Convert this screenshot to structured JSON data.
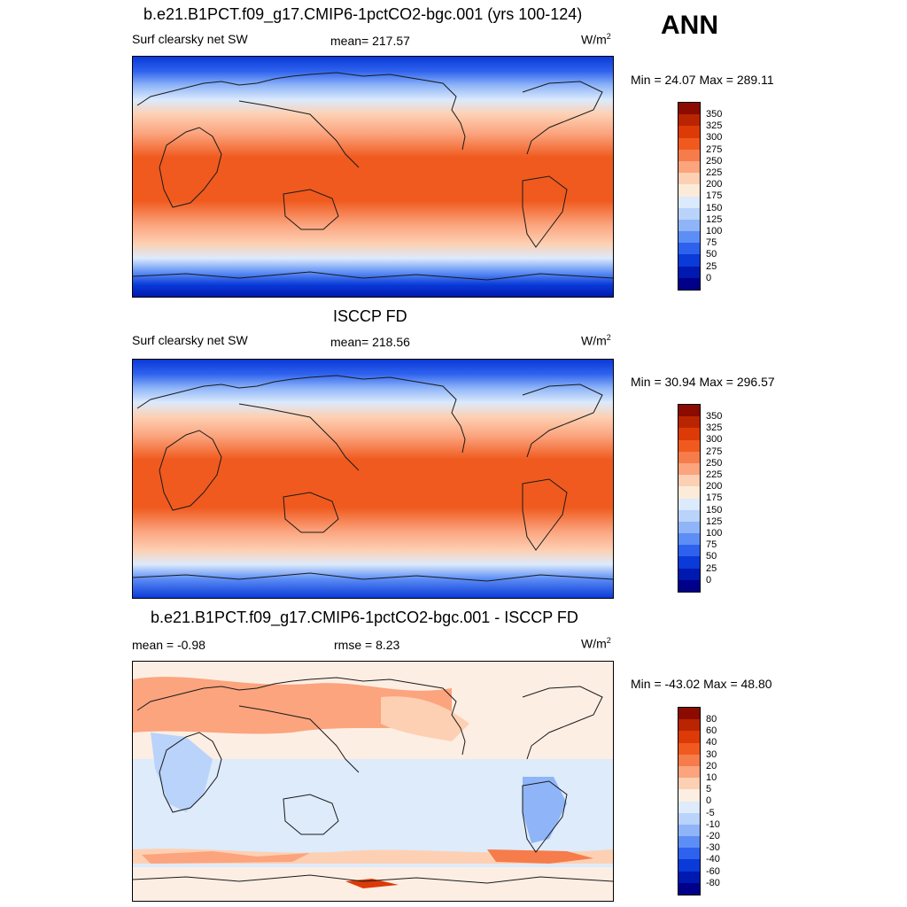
{
  "header": {
    "ann_label": "ANN",
    "units_text": "W/m",
    "units_exp": "2"
  },
  "panels": [
    {
      "title": "b.e21.B1PCT.f09_g17.CMIP6-1pctCO2-bgc.001 (yrs 100-124)",
      "left_label": "Surf clearsky net SW",
      "center_label": "mean= 217.57",
      "minmax": "Min =  24.07 Max = 289.11",
      "colorbar_labels": [
        "350",
        "325",
        "300",
        "275",
        "250",
        "225",
        "200",
        "175",
        "150",
        "125",
        "100",
        "75",
        "50",
        "25",
        "0"
      ]
    },
    {
      "title": "ISCCP FD",
      "left_label": "Surf clearsky net SW",
      "center_label": "mean= 218.56",
      "minmax": "Min =  30.94 Max = 296.57",
      "colorbar_labels": [
        "350",
        "325",
        "300",
        "275",
        "250",
        "225",
        "200",
        "175",
        "150",
        "125",
        "100",
        "75",
        "50",
        "25",
        "0"
      ]
    },
    {
      "title": "b.e21.B1PCT.f09_g17.CMIP6-1pctCO2-bgc.001 - ISCCP FD",
      "left_label": "mean =  -0.98",
      "center_label": "rmse =   8.23",
      "minmax": "Min = -43.02 Max =  48.80",
      "colorbar_labels": [
        "80",
        "60",
        "40",
        "30",
        "20",
        "10",
        "5",
        "0",
        "-5",
        "-10",
        "-20",
        "-30",
        "-40",
        "-60",
        "-80"
      ]
    }
  ],
  "colors": {
    "abs_scale": [
      "#8b0b00",
      "#b92500",
      "#dc3a07",
      "#f05a1e",
      "#f67c4b",
      "#fba47e",
      "#fdd0b3",
      "#fdebd9",
      "#dbeafc",
      "#b9d3fb",
      "#8fb5f8",
      "#5d8ef5",
      "#2e62ee",
      "#0a3ad8",
      "#0019b0",
      "#00008a"
    ],
    "diff_scale": [
      "#8b0b00",
      "#b92500",
      "#dc3a07",
      "#f05a1e",
      "#f67c4b",
      "#fba47e",
      "#fdd0b3",
      "#fdeee3",
      "#ddebfb",
      "#b9d3fb",
      "#8fb5f8",
      "#5d8ef5",
      "#2e62ee",
      "#0a3ad8",
      "#0019b0",
      "#00008a"
    ]
  }
}
